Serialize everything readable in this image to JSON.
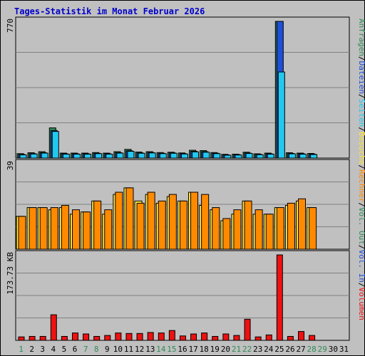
{
  "title": "Tages-Statistik im Monat Februar 2026",
  "colors": {
    "background": "#c0c0c0",
    "title": "#0000cc",
    "anfragen": "#2e8b57",
    "dateien": "#1e4fd8",
    "seiten": "#22c8f0",
    "besuche": "#ffe23a",
    "rechner": "#ff8a00",
    "volumen": "#ee1111",
    "weekday": "#000000",
    "weekend": "#2e8b57"
  },
  "labels": {
    "right_top": [
      "Anfragen",
      "Dateien",
      "Seiten",
      "Besuche",
      "Rechner",
      "Vol. Out",
      "Vol. In",
      "Volumen"
    ],
    "right_top_sep": "/",
    "panel1_max": "770",
    "panel2_max": "39",
    "panel3_max": "173.73 KB"
  },
  "chart_data": [
    {
      "type": "bar",
      "panel": "top",
      "categories": [
        "1",
        "2",
        "3",
        "4",
        "5",
        "6",
        "7",
        "8",
        "9",
        "10",
        "11",
        "12",
        "13",
        "14",
        "15",
        "16",
        "17",
        "18",
        "19",
        "20",
        "21",
        "22",
        "23",
        "24",
        "25",
        "26",
        "27",
        "28",
        "29",
        "30",
        "31"
      ],
      "ylim": [
        0,
        770
      ],
      "series": [
        {
          "name": "Anfragen",
          "values": [
            25,
            30,
            36,
            170,
            28,
            28,
            28,
            31,
            28,
            36,
            49,
            34,
            36,
            31,
            33,
            29,
            44,
            42,
            31,
            21,
            22,
            33,
            24,
            28,
            770,
            30,
            28,
            26,
            0,
            0,
            0
          ]
        },
        {
          "name": "Dateien",
          "values": [
            20,
            25,
            30,
            155,
            24,
            24,
            24,
            27,
            24,
            30,
            41,
            29,
            31,
            27,
            29,
            25,
            38,
            36,
            27,
            18,
            19,
            28,
            21,
            24,
            770,
            26,
            24,
            22,
            0,
            0,
            0
          ]
        },
        {
          "name": "Seiten",
          "values": [
            18,
            23,
            28,
            150,
            22,
            22,
            22,
            25,
            22,
            28,
            38,
            27,
            29,
            25,
            27,
            23,
            35,
            33,
            25,
            16,
            17,
            26,
            19,
            22,
            485,
            24,
            22,
            20,
            0,
            0,
            0
          ]
        }
      ],
      "grid": true
    },
    {
      "type": "bar",
      "panel": "middle",
      "categories": [
        "1",
        "2",
        "3",
        "4",
        "5",
        "6",
        "7",
        "8",
        "9",
        "10",
        "11",
        "12",
        "13",
        "14",
        "15",
        "16",
        "17",
        "18",
        "19",
        "20",
        "21",
        "22",
        "23",
        "24",
        "25",
        "26",
        "27",
        "28",
        "29",
        "30",
        "31"
      ],
      "ylim": [
        0,
        39
      ],
      "series": [
        {
          "name": "Besuche",
          "values": [
            15,
            19,
            19,
            18,
            19,
            16,
            17,
            22,
            16,
            25,
            28,
            22,
            25,
            21,
            24,
            22,
            26,
            20,
            18,
            13,
            16,
            22,
            16,
            16,
            19,
            20,
            22,
            19,
            0,
            0,
            0
          ]
        },
        {
          "name": "Rechner",
          "values": [
            15,
            19,
            19,
            19,
            20,
            18,
            17,
            22,
            18,
            26,
            28,
            21,
            26,
            22,
            25,
            22,
            26,
            25,
            19,
            14,
            18,
            22,
            18,
            16,
            19,
            21,
            23,
            19,
            0,
            0,
            0
          ]
        }
      ],
      "grid": true
    },
    {
      "type": "bar",
      "panel": "bottom",
      "categories": [
        "1",
        "2",
        "3",
        "4",
        "5",
        "6",
        "7",
        "8",
        "9",
        "10",
        "11",
        "12",
        "13",
        "14",
        "15",
        "16",
        "17",
        "18",
        "19",
        "20",
        "21",
        "22",
        "23",
        "24",
        "25",
        "26",
        "27",
        "28",
        "29",
        "30",
        "31"
      ],
      "ylim": [
        0,
        173.73
      ],
      "ylabel": "KB",
      "series": [
        {
          "name": "Volumen",
          "values": [
            7,
            8,
            8,
            52,
            8,
            15,
            13,
            8,
            10,
            15,
            14,
            14,
            16,
            15,
            20,
            9,
            13,
            15,
            8,
            13,
            10,
            43,
            7,
            11,
            173.73,
            8,
            18,
            10,
            0,
            0,
            0
          ]
        }
      ],
      "grid": true
    }
  ],
  "weekend_days": [
    "1",
    "7",
    "8",
    "14",
    "15",
    "21",
    "22",
    "28",
    "29"
  ]
}
